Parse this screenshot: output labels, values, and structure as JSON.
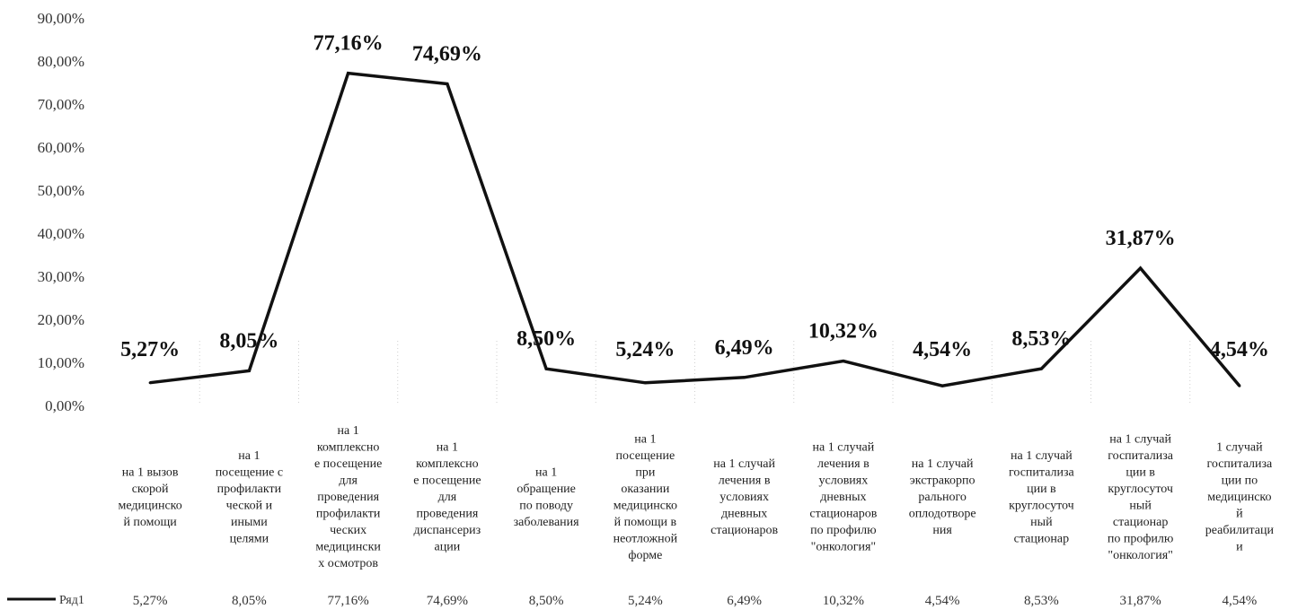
{
  "chart_data": {
    "type": "line",
    "categories": [
      "на 1 вызов скорой медицинской помощи",
      "на 1 посещение с профилактической и иными целями",
      "на 1 комплексное посещение для проведения профилактических медицинских осмотров",
      "на 1 комплексное посещение для проведения диспансеризации",
      "на 1 обращение по поводу заболевания",
      "на 1 посещение при оказании медицинской помощи в неотложной форме",
      "на 1 случай лечения в условиях дневных стационаров",
      "на 1 случай лечения в условиях дневных стационаров по профилю \"онкология\"",
      "на 1 случай экстракорпорального оплодотворения",
      "на 1 случай госпитализации в круглосуточный стационар",
      "на 1 случай госпитализации в круглосуточный стационар по профилю \"онкология\"",
      "1 случай госпитализации по медицинской реабилитации"
    ],
    "category_lines": [
      [
        "на 1 вызов",
        "скорой",
        "медицинско",
        "й помощи"
      ],
      [
        "на 1",
        "посещение с",
        "профилакти",
        "ческой и",
        "иными",
        "целями"
      ],
      [
        "на 1",
        "комплексно",
        "е посещение",
        "для",
        "проведения",
        "профилакти",
        "ческих",
        "медицински",
        "х осмотров"
      ],
      [
        "на 1",
        "комплексно",
        "е посещение",
        "для",
        "проведения",
        "диспансериз",
        "ации"
      ],
      [
        "на 1",
        "обращение",
        "по поводу",
        "заболевания"
      ],
      [
        "на 1",
        "посещение",
        "при",
        "оказании",
        "медицинско",
        "й помощи в",
        "неотложной",
        "форме"
      ],
      [
        "на 1 случай",
        "лечения в",
        "условиях",
        "дневных",
        "стационаров"
      ],
      [
        "на 1 случай",
        "лечения в",
        "условиях",
        "дневных",
        "стационаров",
        "по профилю",
        "\"онкология\""
      ],
      [
        "на 1 случай",
        "экстракорпо",
        "рального",
        "оплодотворе",
        "ния"
      ],
      [
        "на 1 случай",
        "госпитализа",
        "ции в",
        "круглосуточ",
        "ный",
        "стационар"
      ],
      [
        "на 1 случай",
        "госпитализа",
        "ции в",
        "круглосуточ",
        "ный",
        "стационар",
        "по профилю",
        "\"онкология\""
      ],
      [
        "1 случай",
        "госпитализа",
        "ции по",
        "медицинско",
        "й",
        "реабилитаци",
        "и"
      ]
    ],
    "series": [
      {
        "name": "Ряд1",
        "values": [
          5.27,
          8.05,
          77.16,
          74.69,
          8.5,
          5.24,
          6.49,
          10.32,
          4.54,
          8.53,
          31.87,
          4.54
        ],
        "labels": [
          "5,27%",
          "8,05%",
          "77,16%",
          "74,69%",
          "8,50%",
          "5,24%",
          "6,49%",
          "10,32%",
          "4,54%",
          "8,53%",
          "31,87%",
          "4,54%"
        ],
        "table_labels": [
          "5,27%",
          "8,05%",
          "77,16%",
          "74,69%",
          "8,50%",
          "5,24%",
          "6,49%",
          "10,32%",
          "4,54%",
          "8,53%",
          "31,87%",
          "4,54%"
        ],
        "color": "#111111"
      }
    ],
    "ylim": [
      0,
      90
    ],
    "yticks": [
      0,
      10,
      20,
      30,
      40,
      50,
      60,
      70,
      80,
      90
    ],
    "ytick_labels": [
      "0,00%",
      "10,00%",
      "20,00%",
      "30,00%",
      "40,00%",
      "50,00%",
      "60,00%",
      "70,00%",
      "80,00%",
      "90,00%"
    ],
    "grid": false,
    "legend": "bottom-left, inside data table"
  }
}
